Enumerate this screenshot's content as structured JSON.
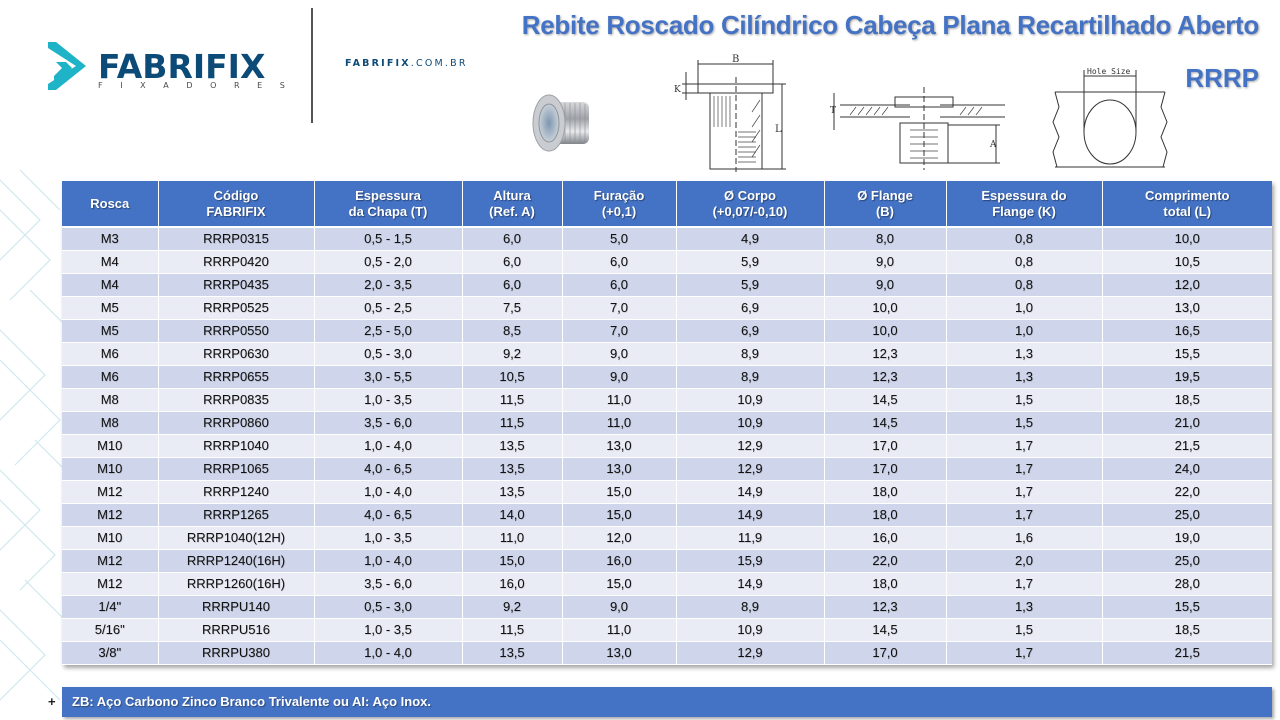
{
  "brand": {
    "logo_word": "FABRIFIX",
    "logo_sub": "FIXADORES",
    "site_bold": "FABRIFIX",
    "site_rest": ".COM.BR",
    "colors": {
      "primary": "#0c4a78",
      "accent": "#1fb3c8",
      "title": "#4472c4"
    }
  },
  "header": {
    "title": "Rebite Roscado Cilíndrico Cabeça Plana Recartilhado Aberto",
    "code": "RRRP"
  },
  "drawings": {
    "labels": {
      "flange": "B",
      "flange_thickness": "K",
      "length": "L",
      "sheet": "T",
      "height": "A",
      "hole": "Hole Size"
    }
  },
  "table": {
    "colors": {
      "header_bg": "#4472c4",
      "row_odd": "#cfd5ea",
      "row_even": "#e9ebf5"
    },
    "columns": [
      "Rosca",
      "Código\nFABRIFIX",
      "Espessura\nda Chapa (T)",
      "Altura\n(Ref. A)",
      "Furação\n(+0,1)",
      "Ø Corpo\n(+0,07/-0,10)",
      "Ø Flange\n(B)",
      "Espessura do\nFlange (K)",
      "Comprimento\ntotal (L)"
    ],
    "rows": [
      [
        "M3",
        "RRRP0315",
        "0,5 - 1,5",
        "6,0",
        "5,0",
        "4,9",
        "8,0",
        "0,8",
        "10,0"
      ],
      [
        "M4",
        "RRRP0420",
        "0,5 - 2,0",
        "6,0",
        "6,0",
        "5,9",
        "9,0",
        "0,8",
        "10,5"
      ],
      [
        "M4",
        "RRRP0435",
        "2,0 - 3,5",
        "6,0",
        "6,0",
        "5,9",
        "9,0",
        "0,8",
        "12,0"
      ],
      [
        "M5",
        "RRRP0525",
        "0,5 - 2,5",
        "7,5",
        "7,0",
        "6,9",
        "10,0",
        "1,0",
        "13,0"
      ],
      [
        "M5",
        "RRRP0550",
        "2,5 - 5,0",
        "8,5",
        "7,0",
        "6,9",
        "10,0",
        "1,0",
        "16,5"
      ],
      [
        "M6",
        "RRRP0630",
        "0,5 - 3,0",
        "9,2",
        "9,0",
        "8,9",
        "12,3",
        "1,3",
        "15,5"
      ],
      [
        "M6",
        "RRRP0655",
        "3,0 - 5,5",
        "10,5",
        "9,0",
        "8,9",
        "12,3",
        "1,3",
        "19,5"
      ],
      [
        "M8",
        "RRRP0835",
        "1,0 - 3,5",
        "11,5",
        "11,0",
        "10,9",
        "14,5",
        "1,5",
        "18,5"
      ],
      [
        "M8",
        "RRRP0860",
        "3,5 - 6,0",
        "11,5",
        "11,0",
        "10,9",
        "14,5",
        "1,5",
        "21,0"
      ],
      [
        "M10",
        "RRRP1040",
        "1,0 - 4,0",
        "13,5",
        "13,0",
        "12,9",
        "17,0",
        "1,7",
        "21,5"
      ],
      [
        "M10",
        "RRRP1065",
        "4,0 - 6,5",
        "13,5",
        "13,0",
        "12,9",
        "17,0",
        "1,7",
        "24,0"
      ],
      [
        "M12",
        "RRRP1240",
        "1,0 - 4,0",
        "13,5",
        "15,0",
        "14,9",
        "18,0",
        "1,7",
        "22,0"
      ],
      [
        "M12",
        "RRRP1265",
        "4,0 - 6,5",
        "14,0",
        "15,0",
        "14,9",
        "18,0",
        "1,7",
        "25,0"
      ],
      [
        "M10",
        "RRRP1040(12H)",
        "1,0 - 3,5",
        "11,0",
        "12,0",
        "11,9",
        "16,0",
        "1,6",
        "19,0"
      ],
      [
        "M12",
        "RRRP1240(16H)",
        "1,0 - 4,0",
        "15,0",
        "16,0",
        "15,9",
        "22,0",
        "2,0",
        "25,0"
      ],
      [
        "M12",
        "RRRP1260(16H)",
        "3,5 - 6,0",
        "16,0",
        "15,0",
        "14,9",
        "18,0",
        "1,7",
        "28,0"
      ],
      [
        "1/4\"",
        "RRRPU140",
        "0,5 - 3,0",
        "9,2",
        "9,0",
        "8,9",
        "12,3",
        "1,3",
        "15,5"
      ],
      [
        "5/16\"",
        "RRRPU516",
        "1,0 - 3,5",
        "11,5",
        "11,0",
        "10,9",
        "14,5",
        "1,5",
        "18,5"
      ],
      [
        "3/8\"",
        "RRRPU380",
        "1,0 - 4,0",
        "13,5",
        "13,0",
        "12,9",
        "17,0",
        "1,7",
        "21,5"
      ]
    ]
  },
  "footer": {
    "plus": "+",
    "note": "ZB: Aço Carbono Zinco Branco Trivalente ou AI: Aço Inox."
  }
}
